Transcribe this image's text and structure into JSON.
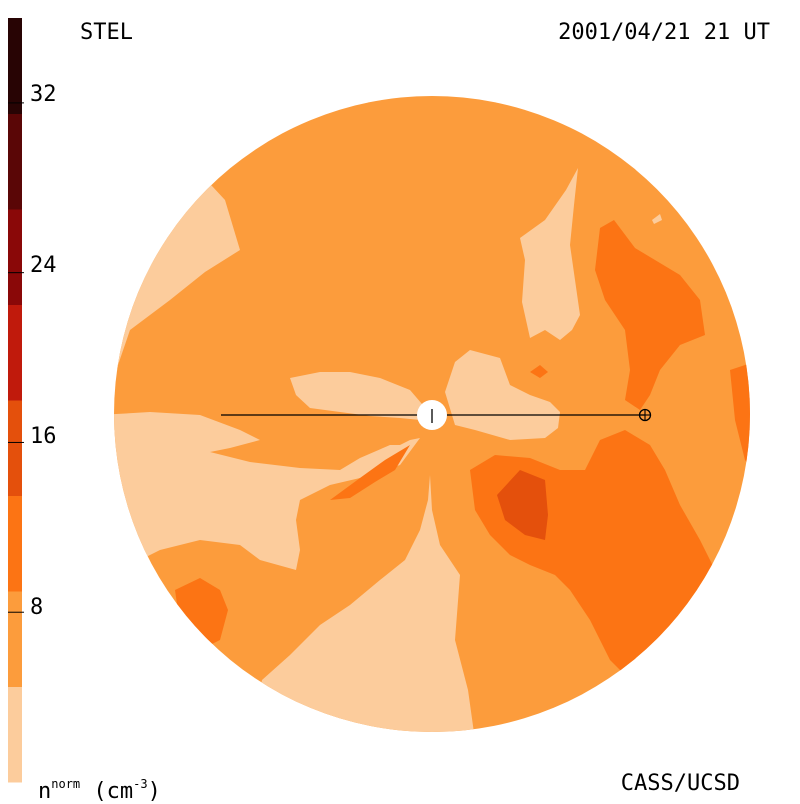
{
  "header": {
    "instrument": "STEL",
    "timestamp": "2001/04/21 21 UT"
  },
  "footer": {
    "credit": "CASS/UCSD"
  },
  "colorbar": {
    "unit_base": "n",
    "unit_sup": "norm",
    "unit_paren": "(cm",
    "unit_exp": "-3",
    "unit_close": ")",
    "ticks": [
      "32",
      "24",
      "16",
      "8"
    ],
    "colors": [
      "#fccc9c",
      "#fc9c3c",
      "#fc7414",
      "#e4500c",
      "#c01a0c",
      "#8a0808",
      "#5a0606",
      "#280404"
    ]
  },
  "chart_data": {
    "type": "heatmap",
    "title": "STEL",
    "subtitle": "2001/04/21 21 UT",
    "colorbar_label": "n^norm (cm^-3)",
    "colorbar_range": [
      0,
      36
    ],
    "colorbar_ticks": [
      8,
      16,
      24,
      32
    ],
    "levels": [
      0,
      4,
      8,
      12,
      16,
      20,
      24,
      28,
      32
    ]
  }
}
